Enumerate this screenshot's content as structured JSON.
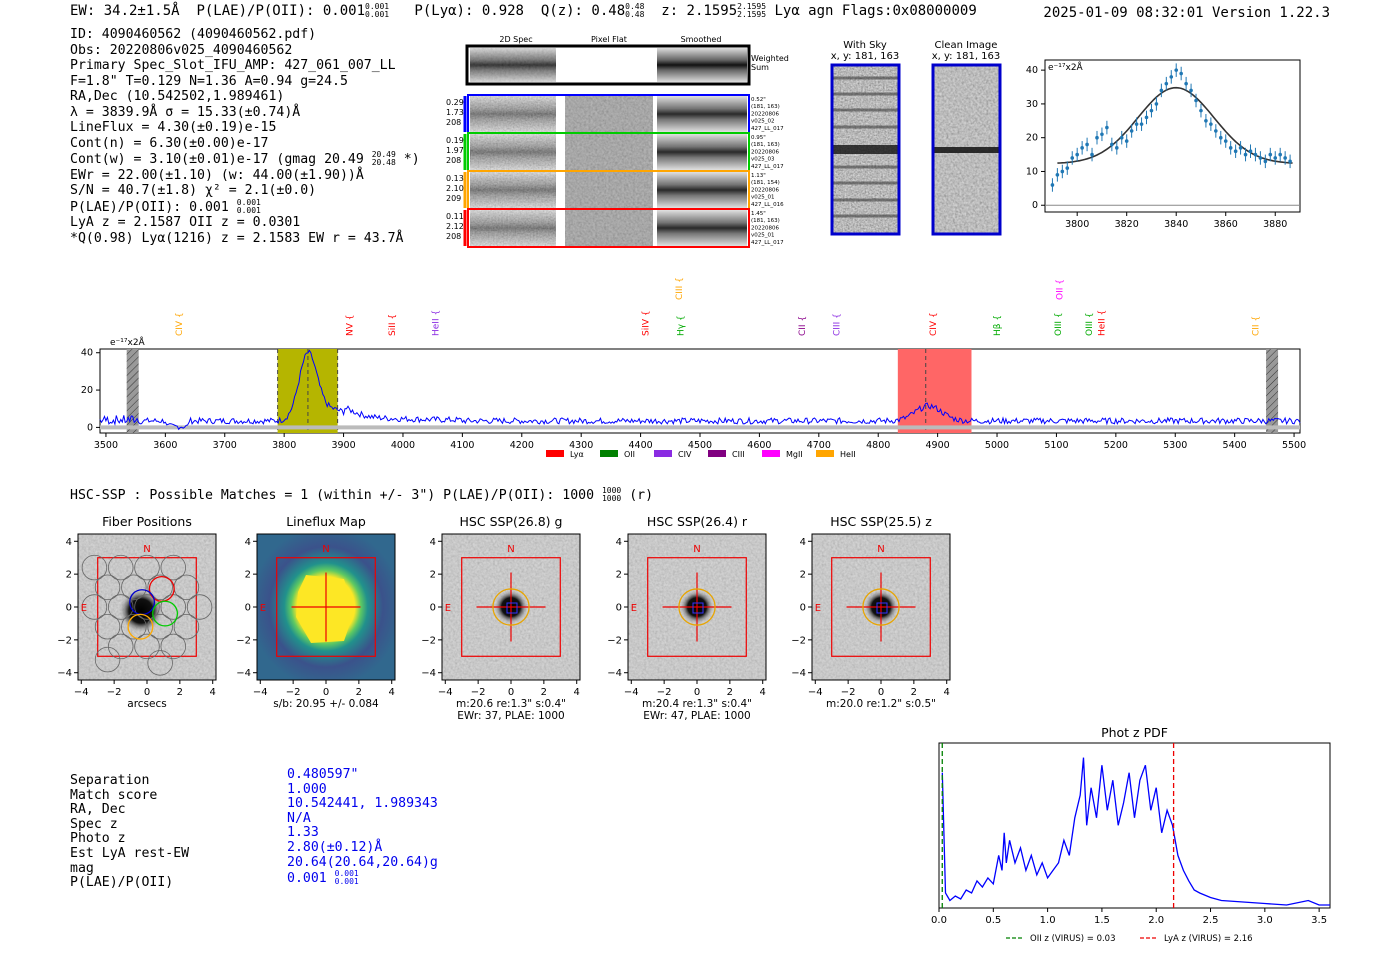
{
  "header": {
    "left": "EW: 34.2±1.5Å  P(LAE)/P(OII): 0.001 ⁰·⁰⁰¹₀.₀₀₁  P(Lyα): 0.928  Q(z): 0.48  z: 2.1595  Lyα  agn  Flags:0x08000009",
    "ew": "EW: 34.2±1.5Å",
    "plae": "P(LAE)/P(OII): 0.001",
    "plae_hi": "0.001",
    "plae_lo": "0.001",
    "plya": "P(Lyα): 0.928",
    "qz": "Q(z): 0.48",
    "qz_hi": "0.48",
    "qz_lo": "0.48",
    "z": "z: 2.1595",
    "z_hi": "2.1595",
    "z_lo": "2.1595",
    "tail": "Lyα  agn  Flags:0x08000009",
    "timestamp": "2025-01-09 08:32:01  Version 1.22.3"
  },
  "info": {
    "id": "ID: 4090460562 (4090460562.pdf)",
    "obs": "Obs: 20220806v025_4090460562",
    "primary": "Primary Spec_Slot_IFU_AMP: 427_061_007_LL",
    "params": "F=1.8\"  T=0.129  N=1.36  A=0.94  g=24.5",
    "radec": "RA,Dec (10.542502,1.989461)",
    "lambda": "λ = 3839.9Å  σ = 15.33(±0.74)Å",
    "lineflux": "LineFlux = 4.30(±0.19)e-15",
    "contn": "Cont(n) = 6.30(±0.00)e-17",
    "contw": "Cont(w) = 3.10(±0.01)e-17 (gmag 20.49",
    "contw_hi": "20.49",
    "contw_lo": "20.48",
    "contw_tail": "*)",
    "ewr": "EWr = 22.00(±1.10) (w: 44.00(±1.90))Å",
    "sn": "S/N = 40.7(±1.8)  χ² = 2.1(±0.0)",
    "plae": "P(LAE)/P(OII): 0.001",
    "plae_hi": "0.001",
    "plae_lo": "0.001",
    "lya": "LyA z = 2.1587  OII z = 0.0301",
    "q": "*Q(0.98) Lyα(1216) z = 2.1583  EW r = 43.7Å"
  },
  "cutouts": {
    "cols": [
      "2D Spec",
      "Pixel Flat",
      "Smoothed"
    ],
    "weighted_label": "Weighted\nSum",
    "weighted_1": "Weighted",
    "weighted_2": "Sum",
    "rows": [
      {
        "left": [
          "0.29",
          "1.73",
          "208"
        ],
        "right": [
          "0.52\"",
          "(181, 163)",
          "20220806",
          "v025_02",
          "427_LL_017"
        ],
        "color": "#0000ff"
      },
      {
        "left": [
          "0.19",
          "1.97",
          "208"
        ],
        "right": [
          "0.95\"",
          "(181, 163)",
          "20220806",
          "v025_03",
          "427_LL_017"
        ],
        "color": "#00cc00"
      },
      {
        "left": [
          "0.13",
          "2.10",
          "209"
        ],
        "right": [
          "1.13\"",
          "(181, 154)",
          "20220806",
          "v025_01",
          "427_LL_016"
        ],
        "color": "#ffa500"
      },
      {
        "left": [
          "0.11",
          "2.12",
          "208"
        ],
        "right": [
          "1.45\"",
          "(181, 163)",
          "20220806",
          "v025_01",
          "427_LL_017"
        ],
        "color": "#ff0000"
      }
    ],
    "with_sky_title": "With Sky",
    "with_sky_coords": "x, y: 181, 163",
    "clean_title": "Clean Image",
    "clean_coords": "x, y: 181, 163"
  },
  "chart_data": [
    {
      "type": "line",
      "name": "line-fit",
      "ylabel_unit": "e⁻¹⁷x2Å",
      "xlim": [
        3787,
        3890
      ],
      "ylim": [
        -2,
        43
      ],
      "xticks": [
        3800,
        3820,
        3840,
        3860,
        3880
      ],
      "yticks": [
        0,
        10,
        20,
        30,
        40
      ],
      "points": [
        [
          3790,
          6
        ],
        [
          3792,
          9
        ],
        [
          3794,
          10
        ],
        [
          3796,
          11
        ],
        [
          3798,
          14
        ],
        [
          3800,
          15
        ],
        [
          3802,
          17
        ],
        [
          3804,
          18
        ],
        [
          3806,
          15
        ],
        [
          3808,
          20
        ],
        [
          3810,
          21
        ],
        [
          3812,
          23
        ],
        [
          3814,
          18
        ],
        [
          3816,
          17
        ],
        [
          3818,
          20
        ],
        [
          3820,
          19
        ],
        [
          3822,
          22
        ],
        [
          3824,
          24
        ],
        [
          3826,
          24
        ],
        [
          3828,
          26
        ],
        [
          3830,
          28
        ],
        [
          3832,
          30
        ],
        [
          3834,
          34
        ],
        [
          3836,
          36
        ],
        [
          3838,
          38
        ],
        [
          3840,
          40
        ],
        [
          3842,
          39
        ],
        [
          3844,
          36
        ],
        [
          3846,
          34
        ],
        [
          3848,
          31
        ],
        [
          3850,
          28
        ],
        [
          3852,
          25
        ],
        [
          3854,
          24
        ],
        [
          3856,
          22
        ],
        [
          3858,
          20
        ],
        [
          3860,
          19
        ],
        [
          3862,
          17
        ],
        [
          3864,
          16
        ],
        [
          3866,
          17
        ],
        [
          3868,
          15
        ],
        [
          3870,
          16
        ],
        [
          3872,
          15
        ],
        [
          3874,
          14
        ],
        [
          3876,
          13
        ],
        [
          3878,
          15
        ],
        [
          3880,
          14
        ],
        [
          3882,
          15
        ],
        [
          3884,
          14
        ],
        [
          3886,
          13
        ]
      ],
      "fit": {
        "mu": 3839.9,
        "sigma": 15.33,
        "amp": 22.5,
        "cont": 12.3
      }
    },
    {
      "type": "line",
      "name": "full-spectrum",
      "ylabel_unit": "e⁻¹⁷x2Å",
      "xlim": [
        3490,
        5510
      ],
      "ylim": [
        -3,
        42
      ],
      "xticks": [
        3500,
        3600,
        3700,
        3800,
        3900,
        4000,
        4100,
        4200,
        4300,
        4400,
        4500,
        4600,
        4700,
        4800,
        4900,
        5000,
        5100,
        5200,
        5300,
        5400,
        5500
      ],
      "yticks": [
        0,
        20,
        40
      ],
      "yellow_band": [
        3789,
        3890
      ],
      "red_band": [
        4833,
        4957
      ],
      "dashed_lines": [
        3789,
        3840,
        3890,
        4880
      ],
      "gray_bars": [
        3545,
        5463
      ],
      "line_labels": [
        {
          "label": "CIV",
          "x": 3628,
          "color": "#ffa500",
          "row": "low"
        },
        {
          "label": "NV",
          "x": 3915,
          "color": "#ff0000",
          "row": "mid"
        },
        {
          "label": "SiII",
          "x": 3987,
          "color": "#ff0000",
          "row": "mid"
        },
        {
          "label": "HeII",
          "x": 4060,
          "color": "#8a2be2",
          "row": "mid"
        },
        {
          "label": "SiIV",
          "x": 4413,
          "color": "#ff0000",
          "row": "mid"
        },
        {
          "label": "Hγ",
          "x": 4472,
          "color": "#00aa00",
          "row": "mid"
        },
        {
          "label": "CIII",
          "x": 4470,
          "color": "#ffa500",
          "row": "high"
        },
        {
          "label": "CII",
          "x": 4677,
          "color": "#8a008a",
          "row": "mid"
        },
        {
          "label": "CIII",
          "x": 4735,
          "color": "#8a2be2",
          "row": "mid"
        },
        {
          "label": "CIV",
          "x": 4897,
          "color": "#ff0000",
          "row": "mid"
        },
        {
          "label": "Hβ",
          "x": 5005,
          "color": "#00aa00",
          "row": "mid"
        },
        {
          "label": "OIII",
          "x": 5108,
          "color": "#00aa00",
          "row": "mid"
        },
        {
          "label": "OII",
          "x": 5110,
          "color": "#ff00ff",
          "row": "high"
        },
        {
          "label": "OIII",
          "x": 5160,
          "color": "#00aa00",
          "row": "mid"
        },
        {
          "label": "HeII",
          "x": 5181,
          "color": "#ff0000",
          "row": "mid"
        },
        {
          "label": "CII",
          "x": 5440,
          "color": "#ffa500",
          "row": "low"
        }
      ],
      "legend": [
        {
          "label": "Lyα",
          "color": "#ff0000"
        },
        {
          "label": "OII",
          "color": "#008000"
        },
        {
          "label": "CIV",
          "color": "#8a2be2"
        },
        {
          "label": "CIII",
          "color": "#800080"
        },
        {
          "label": "MgII",
          "color": "#ff00ff"
        },
        {
          "label": "HeII",
          "color": "#ffa500"
        }
      ]
    },
    {
      "type": "line",
      "name": "photz-pdf",
      "title": "Phot z PDF",
      "xlim": [
        0.0,
        3.6
      ],
      "xticks": [
        0.0,
        0.5,
        1.0,
        1.5,
        2.0,
        2.5,
        3.0,
        3.5
      ],
      "oii_z": 0.03,
      "lya_z": 2.16,
      "legend": [
        "OII z (VIRUS) = 0.03",
        "LyA z (VIRUS) = 2.16"
      ],
      "pdf": [
        [
          0.03,
          0.9
        ],
        [
          0.06,
          0.1
        ],
        [
          0.1,
          0.05
        ],
        [
          0.15,
          0.08
        ],
        [
          0.2,
          0.06
        ],
        [
          0.25,
          0.12
        ],
        [
          0.3,
          0.1
        ],
        [
          0.35,
          0.18
        ],
        [
          0.4,
          0.14
        ],
        [
          0.45,
          0.2
        ],
        [
          0.5,
          0.16
        ],
        [
          0.55,
          0.35
        ],
        [
          0.58,
          0.25
        ],
        [
          0.6,
          0.5
        ],
        [
          0.62,
          0.3
        ],
        [
          0.65,
          0.45
        ],
        [
          0.7,
          0.3
        ],
        [
          0.75,
          0.4
        ],
        [
          0.8,
          0.25
        ],
        [
          0.85,
          0.35
        ],
        [
          0.9,
          0.22
        ],
        [
          0.95,
          0.3
        ],
        [
          1.0,
          0.2
        ],
        [
          1.05,
          0.25
        ],
        [
          1.1,
          0.3
        ],
        [
          1.15,
          0.45
        ],
        [
          1.2,
          0.35
        ],
        [
          1.25,
          0.6
        ],
        [
          1.3,
          0.75
        ],
        [
          1.33,
          1.0
        ],
        [
          1.36,
          0.55
        ],
        [
          1.4,
          0.8
        ],
        [
          1.45,
          0.6
        ],
        [
          1.5,
          0.95
        ],
        [
          1.55,
          0.65
        ],
        [
          1.6,
          0.85
        ],
        [
          1.65,
          0.55
        ],
        [
          1.7,
          0.7
        ],
        [
          1.75,
          0.9
        ],
        [
          1.8,
          0.6
        ],
        [
          1.85,
          0.85
        ],
        [
          1.9,
          0.95
        ],
        [
          1.95,
          0.65
        ],
        [
          2.0,
          0.8
        ],
        [
          2.05,
          0.5
        ],
        [
          2.1,
          0.65
        ],
        [
          2.15,
          0.55
        ],
        [
          2.2,
          0.35
        ],
        [
          2.25,
          0.25
        ],
        [
          2.3,
          0.18
        ],
        [
          2.35,
          0.12
        ],
        [
          2.4,
          0.1
        ],
        [
          2.5,
          0.07
        ],
        [
          2.6,
          0.05
        ],
        [
          2.8,
          0.04
        ],
        [
          3.0,
          0.03
        ],
        [
          3.2,
          0.02
        ],
        [
          3.4,
          0.05
        ],
        [
          3.5,
          0.02
        ],
        [
          3.6,
          0.02
        ]
      ]
    }
  ],
  "hsc": {
    "title": "HSC-SSP : Possible Matches = 1 (within +/- 3\")  P(LAE)/P(OII): 1000",
    "frac_hi": "1000",
    "frac_lo": "1000",
    "tail": "(r)"
  },
  "panels": [
    {
      "title": "Fiber Positions",
      "caption1": "arcsecs",
      "caption2": ""
    },
    {
      "title": "Lineflux Map",
      "caption1": "s/b: 20.95 +/- 0.084",
      "caption2": ""
    },
    {
      "title": "HSC SSP(26.8) g",
      "caption1": "m:20.6  re:1.3\"  s:0.4\"",
      "caption2": "EWr: 37, PLAE: 1000"
    },
    {
      "title": "HSC SSP(26.4) r",
      "caption1": "m:20.4  re:1.3\"  s:0.4\"",
      "caption2": "EWr: 47, PLAE: 1000"
    },
    {
      "title": "HSC SSP(25.5) z",
      "caption1": "m:20.0  re:1.2\"  s:0.5\"",
      "caption2": ""
    }
  ],
  "panel_ticks": [
    "-4",
    "-2",
    "0",
    "2",
    "4"
  ],
  "compass": {
    "n": "N",
    "e": "E"
  },
  "match": {
    "labels": [
      "Separation",
      "Match score",
      "RA, Dec",
      "Spec z",
      "Photo z",
      "Est LyA rest-EW",
      "mag",
      "P(LAE)/P(OII)"
    ],
    "values": [
      "0.480597\"",
      "1.000",
      "10.542441, 1.989343",
      "N/A",
      "1.33",
      "2.80(±0.12)Å",
      "20.64(20.64,20.64)g",
      "0.001"
    ],
    "plae_hi": "0.001",
    "plae_lo": "0.001"
  },
  "colors": {
    "spectrum": "#0000ff",
    "yellow": "#b5b500",
    "red": "#ff6666"
  }
}
